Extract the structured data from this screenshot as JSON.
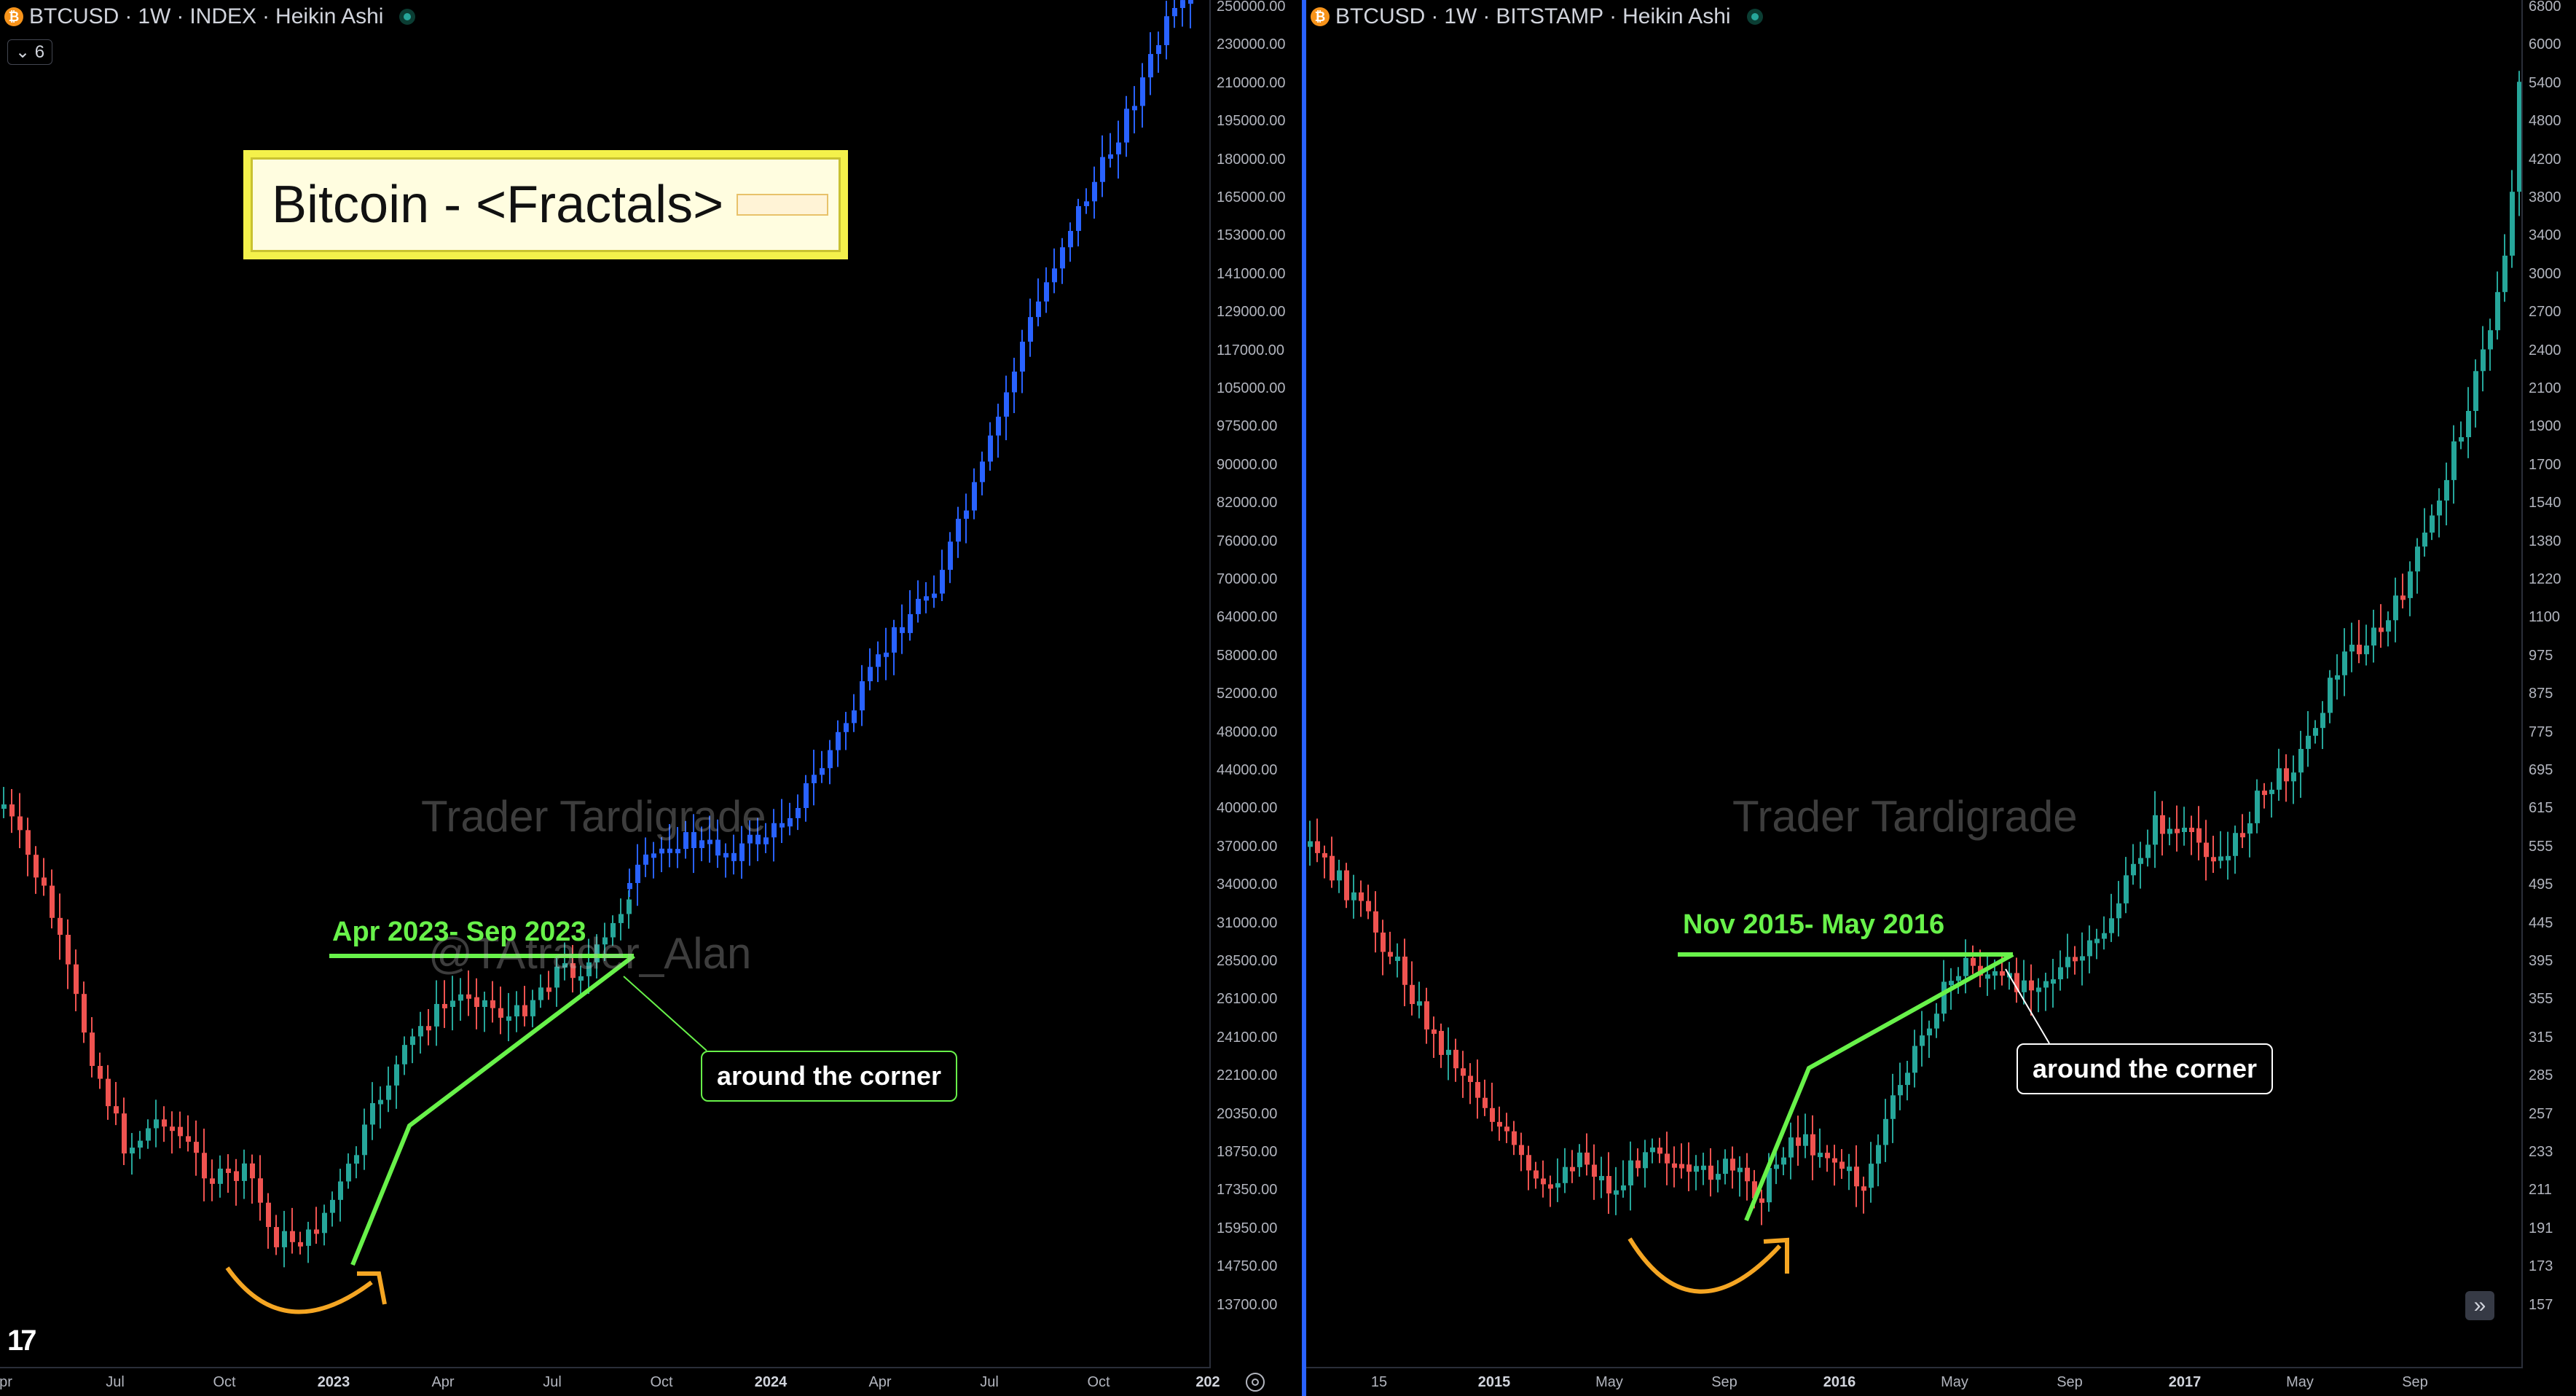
{
  "left_chart": {
    "legend": {
      "symbol": "BTCUSD",
      "interval": "1W",
      "exchange": "INDEX",
      "style": "Heikin Ashi",
      "separator": "·"
    },
    "collapse_badge": "⌄ 6",
    "title": "Bitcoin - <Fractals>",
    "watermark_name": "Trader Tardigrade",
    "watermark_handle": "@TAtrader_Alan",
    "period_label": "Apr 2023- Sep 2023",
    "callout": "around the corner",
    "price_ticks": [
      "250000.00",
      "230000.00",
      "210000.00",
      "195000.00",
      "180000.00",
      "165000.00",
      "153000.00",
      "141000.00",
      "129000.00",
      "117000.00",
      "105000.00",
      "97500.00",
      "90000.00",
      "82000.00",
      "76000.00",
      "70000.00",
      "64000.00",
      "58000.00",
      "52000.00",
      "48000.00",
      "44000.00",
      "40000.00",
      "37000.00",
      "34000.00",
      "31000.00",
      "28500.00",
      "26100.00",
      "24100.00",
      "22100.00",
      "20350.00",
      "18750.00",
      "17350.00",
      "15950.00",
      "14750.00",
      "13700.00"
    ],
    "time_ticks": [
      {
        "label": "pr",
        "bold": false
      },
      {
        "label": "Jul",
        "bold": false
      },
      {
        "label": "Oct",
        "bold": false
      },
      {
        "label": "2023",
        "bold": true
      },
      {
        "label": "Apr",
        "bold": false
      },
      {
        "label": "Jul",
        "bold": false
      },
      {
        "label": "Oct",
        "bold": false
      },
      {
        "label": "2024",
        "bold": true
      },
      {
        "label": "Apr",
        "bold": false
      },
      {
        "label": "Jul",
        "bold": false
      },
      {
        "label": "Oct",
        "bold": false
      },
      {
        "label": "202",
        "bold": true
      }
    ]
  },
  "right_chart": {
    "legend": {
      "symbol": "BTCUSD",
      "interval": "1W",
      "exchange": "BITSTAMP",
      "style": "Heikin Ashi",
      "separator": "·"
    },
    "watermark_name": "Trader Tardigrade",
    "period_label": "Nov 2015- May 2016",
    "callout": "around the corner",
    "price_ticks": [
      "6800",
      "6000",
      "5400",
      "4800",
      "4200",
      "3800",
      "3400",
      "3000",
      "2700",
      "2400",
      "2100",
      "1900",
      "1700",
      "1540",
      "1380",
      "1220",
      "1100",
      "975",
      "875",
      "775",
      "695",
      "615",
      "555",
      "495",
      "445",
      "395",
      "355",
      "315",
      "285",
      "257",
      "233",
      "211",
      "191",
      "173",
      "157"
    ],
    "time_ticks": [
      {
        "label": "15",
        "bold": false
      },
      {
        "label": "2015",
        "bold": true
      },
      {
        "label": "May",
        "bold": false
      },
      {
        "label": "Sep",
        "bold": false
      },
      {
        "label": "2016",
        "bold": true
      },
      {
        "label": "May",
        "bold": false
      },
      {
        "label": "Sep",
        "bold": false
      },
      {
        "label": "2017",
        "bold": true
      },
      {
        "label": "May",
        "bold": false
      },
      {
        "label": "Sep",
        "bold": false
      }
    ]
  },
  "icons": {
    "coin": "bitcoin-coin-icon",
    "live": "live-status-icon",
    "tv_logo": "tradingview-logo",
    "settings": "settings-icon",
    "scroll": "scroll-to-realtime-icon"
  },
  "tv_logo_text": "17",
  "scroll_glyph": "»",
  "colors": {
    "up_candle": "#26a69a",
    "down_candle": "#ef5350",
    "projection_candle": "#2962ff",
    "trendline": "#68f24a",
    "arc": "#f5a623",
    "title_bg": "#f4f14b"
  }
}
